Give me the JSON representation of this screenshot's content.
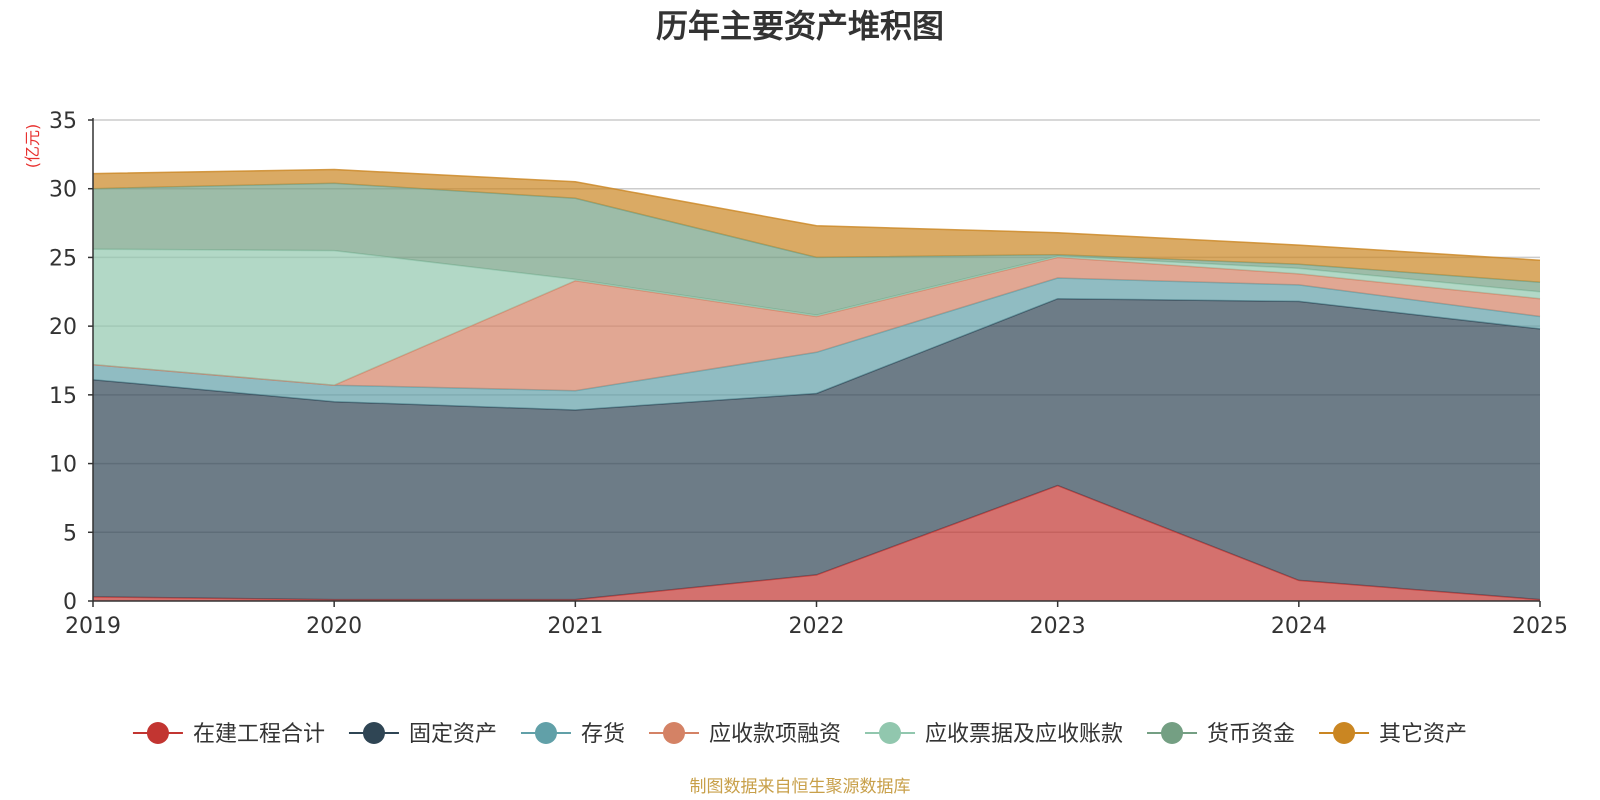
{
  "chart_data": {
    "type": "area",
    "stacked": true,
    "title": "历年主要资产堆积图",
    "ylabel": "(亿元)",
    "ylim": [
      0,
      35
    ],
    "yticks": [
      0,
      5,
      10,
      15,
      20,
      25,
      30,
      35
    ],
    "categories": [
      "2019",
      "2020",
      "2021",
      "2022",
      "2023",
      "2024",
      "2025"
    ],
    "series": [
      {
        "name": "在建工程合计",
        "color": "#c23531",
        "values": [
          0.3,
          0.1,
          0.1,
          1.9,
          8.4,
          1.5,
          0.1
        ]
      },
      {
        "name": "固定资产",
        "color": "#2f4554",
        "values": [
          15.8,
          14.4,
          13.8,
          13.2,
          13.6,
          20.3,
          19.7
        ]
      },
      {
        "name": "存货",
        "color": "#61a0a8",
        "values": [
          1.1,
          1.2,
          1.4,
          3.0,
          1.5,
          1.2,
          0.9
        ]
      },
      {
        "name": "应收款项融资",
        "color": "#d48265",
        "values": [
          0.0,
          0.0,
          8.0,
          2.6,
          1.5,
          0.8,
          1.3
        ]
      },
      {
        "name": "应收票据及应收账款",
        "color": "#91c7ae",
        "values": [
          8.4,
          9.8,
          0.1,
          0.1,
          0.1,
          0.4,
          0.5
        ]
      },
      {
        "name": "货币资金",
        "color": "#749f83",
        "values": [
          4.4,
          4.9,
          5.9,
          4.2,
          0.1,
          0.3,
          0.7
        ]
      },
      {
        "name": "其它资产",
        "color": "#ca8622",
        "values": [
          1.1,
          1.0,
          1.2,
          2.3,
          1.6,
          1.4,
          1.6
        ]
      }
    ],
    "legend_position": "bottom",
    "source": "制图数据来自恒生聚源数据库"
  }
}
